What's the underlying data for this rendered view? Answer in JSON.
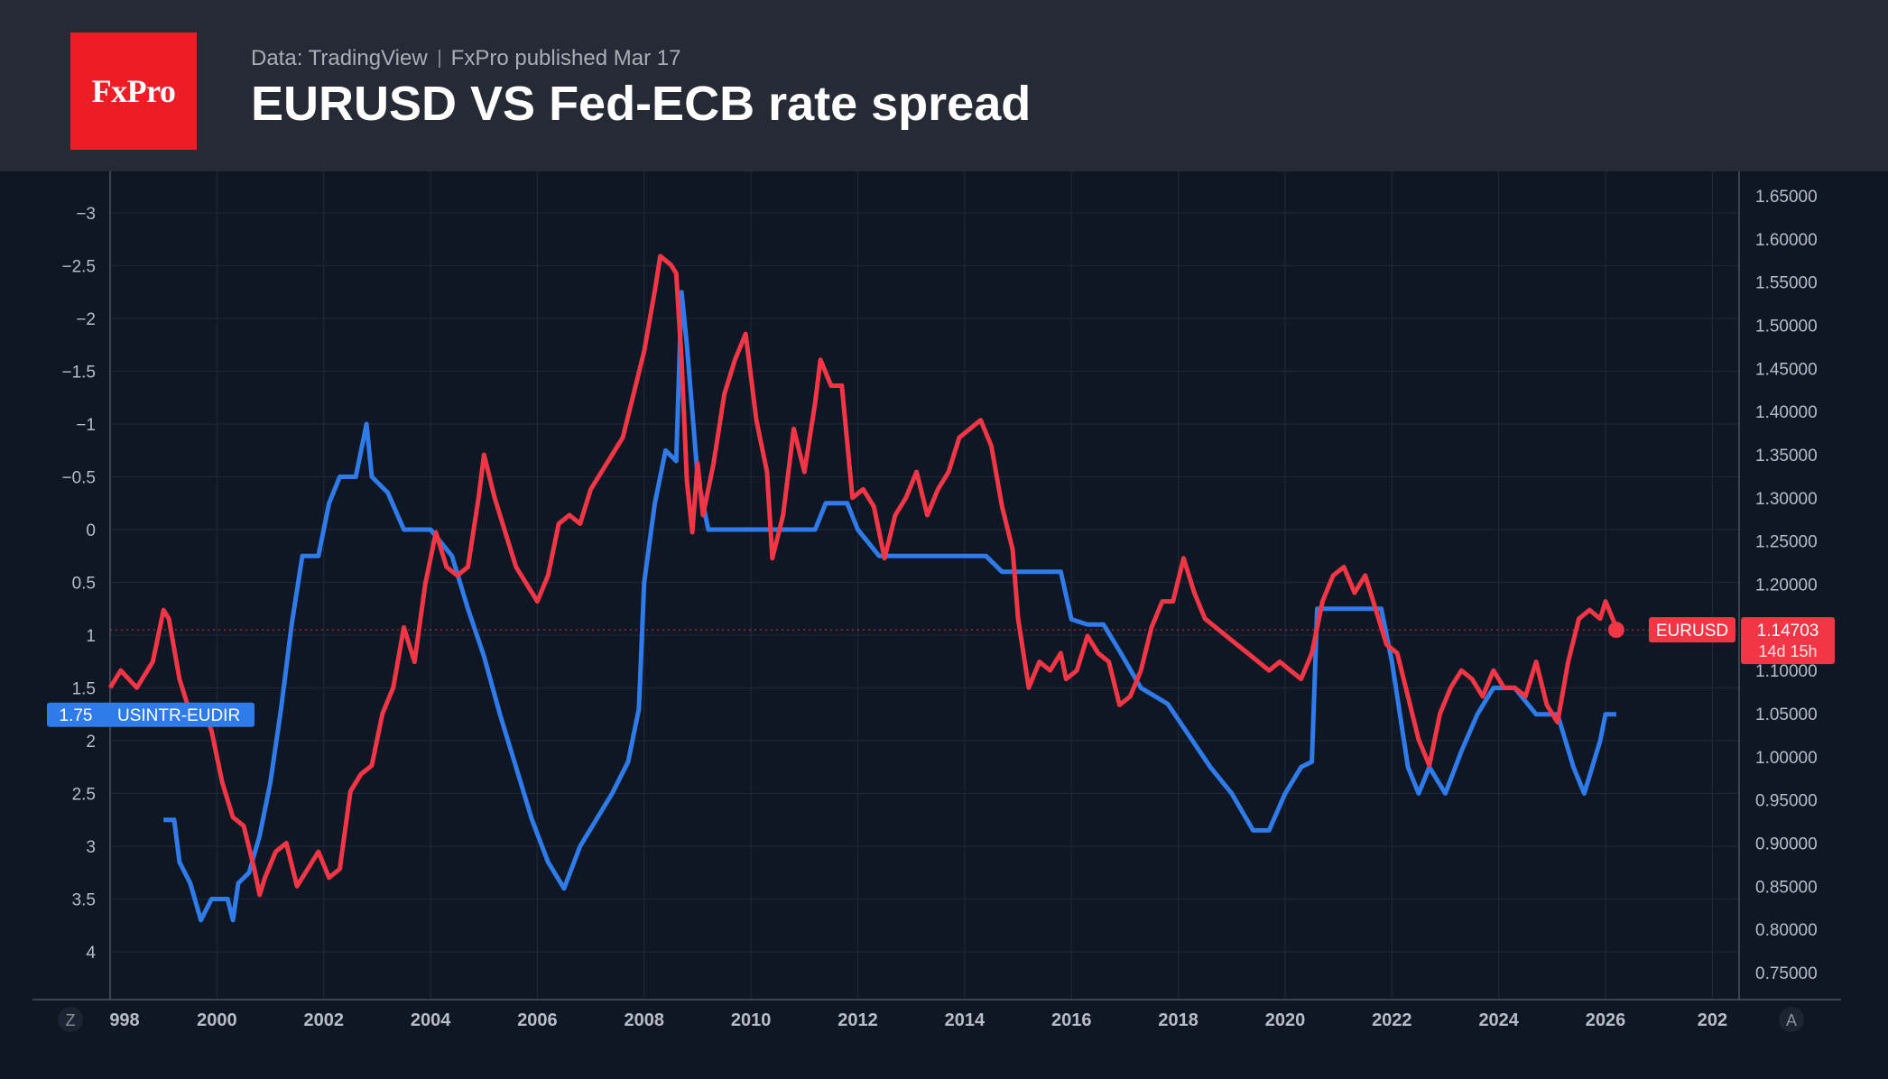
{
  "header": {
    "logo_text": "FxPro",
    "source": "Data: TradingView",
    "published": "FxPro published Mar 17",
    "title": "EURUSD VS Fed-ECB rate spread"
  },
  "corner_labels": {
    "left": "Z",
    "right": "A"
  },
  "colors": {
    "eurusd": "#f23645",
    "spread": "#2f7bea",
    "background": "#0f1725",
    "header": "#262a35",
    "logo": "#ee1c25"
  },
  "chart_data": {
    "type": "line",
    "title": "EURUSD VS Fed-ECB rate spread",
    "x_ticks": [
      "998",
      "2000",
      "2002",
      "2004",
      "2006",
      "2008",
      "2010",
      "2012",
      "2014",
      "2016",
      "2018",
      "2020",
      "2022",
      "2024",
      "2026",
      "202"
    ],
    "xlim": [
      1998,
      2028.5
    ],
    "left_axis": {
      "inverted": true,
      "ylim": [
        -3.3,
        4.3
      ],
      "ticks": [
        "−3",
        "−2.5",
        "−2",
        "−1.5",
        "−1",
        "−0.5",
        "0",
        "0.5",
        "1",
        "1.5",
        "2",
        "2.5",
        "3",
        "3.5",
        "4"
      ],
      "tick_values": [
        -3,
        -2.5,
        -2,
        -1.5,
        -1,
        -0.5,
        0,
        0.5,
        1,
        1.5,
        2,
        2.5,
        3,
        3.5,
        4
      ]
    },
    "right_axis": {
      "ylim": [
        0.725,
        1.675
      ],
      "ticks": [
        "1.65000",
        "1.60000",
        "1.55000",
        "1.50000",
        "1.45000",
        "1.40000",
        "1.35000",
        "1.30000",
        "1.25000",
        "1.20000",
        "1.15000",
        "1.10000",
        "1.05000",
        "1.00000",
        "0.95000",
        "0.90000",
        "0.85000",
        "0.80000",
        "0.75000"
      ],
      "tick_values": [
        1.65,
        1.6,
        1.55,
        1.5,
        1.45,
        1.4,
        1.35,
        1.3,
        1.25,
        1.2,
        1.15,
        1.1,
        1.05,
        1.0,
        0.95,
        0.9,
        0.85,
        0.8,
        0.75
      ]
    },
    "grid": true,
    "series": [
      {
        "name": "EURUSD",
        "axis": "right",
        "last_label": "1.14703",
        "countdown": "14d 15h",
        "points": [
          [
            1998.0,
            1.08
          ],
          [
            1998.2,
            1.1
          ],
          [
            1998.5,
            1.08
          ],
          [
            1998.8,
            1.11
          ],
          [
            1999.0,
            1.17
          ],
          [
            1999.1,
            1.16
          ],
          [
            1999.3,
            1.09
          ],
          [
            1999.5,
            1.05
          ],
          [
            1999.7,
            1.06
          ],
          [
            1999.9,
            1.03
          ],
          [
            2000.1,
            0.97
          ],
          [
            2000.3,
            0.93
          ],
          [
            2000.5,
            0.92
          ],
          [
            2000.7,
            0.87
          ],
          [
            2000.8,
            0.84
          ],
          [
            2000.9,
            0.86
          ],
          [
            2001.1,
            0.89
          ],
          [
            2001.3,
            0.9
          ],
          [
            2001.5,
            0.85
          ],
          [
            2001.7,
            0.87
          ],
          [
            2001.9,
            0.89
          ],
          [
            2002.1,
            0.86
          ],
          [
            2002.3,
            0.87
          ],
          [
            2002.5,
            0.96
          ],
          [
            2002.7,
            0.98
          ],
          [
            2002.9,
            0.99
          ],
          [
            2003.1,
            1.05
          ],
          [
            2003.3,
            1.08
          ],
          [
            2003.5,
            1.15
          ],
          [
            2003.7,
            1.11
          ],
          [
            2003.9,
            1.2
          ],
          [
            2004.1,
            1.26
          ],
          [
            2004.3,
            1.22
          ],
          [
            2004.5,
            1.21
          ],
          [
            2004.7,
            1.22
          ],
          [
            2004.9,
            1.3
          ],
          [
            2005.0,
            1.35
          ],
          [
            2005.2,
            1.3
          ],
          [
            2005.4,
            1.26
          ],
          [
            2005.6,
            1.22
          ],
          [
            2005.8,
            1.2
          ],
          [
            2006.0,
            1.18
          ],
          [
            2006.2,
            1.21
          ],
          [
            2006.4,
            1.27
          ],
          [
            2006.6,
            1.28
          ],
          [
            2006.8,
            1.27
          ],
          [
            2007.0,
            1.31
          ],
          [
            2007.2,
            1.33
          ],
          [
            2007.4,
            1.35
          ],
          [
            2007.6,
            1.37
          ],
          [
            2007.8,
            1.42
          ],
          [
            2008.0,
            1.47
          ],
          [
            2008.2,
            1.54
          ],
          [
            2008.3,
            1.58
          ],
          [
            2008.5,
            1.57
          ],
          [
            2008.6,
            1.56
          ],
          [
            2008.7,
            1.46
          ],
          [
            2008.8,
            1.32
          ],
          [
            2008.9,
            1.26
          ],
          [
            2009.0,
            1.34
          ],
          [
            2009.1,
            1.28
          ],
          [
            2009.3,
            1.34
          ],
          [
            2009.5,
            1.42
          ],
          [
            2009.7,
            1.46
          ],
          [
            2009.9,
            1.49
          ],
          [
            2010.1,
            1.39
          ],
          [
            2010.3,
            1.33
          ],
          [
            2010.4,
            1.23
          ],
          [
            2010.6,
            1.28
          ],
          [
            2010.8,
            1.38
          ],
          [
            2011.0,
            1.33
          ],
          [
            2011.2,
            1.41
          ],
          [
            2011.3,
            1.46
          ],
          [
            2011.5,
            1.43
          ],
          [
            2011.7,
            1.43
          ],
          [
            2011.9,
            1.3
          ],
          [
            2012.1,
            1.31
          ],
          [
            2012.3,
            1.29
          ],
          [
            2012.5,
            1.23
          ],
          [
            2012.7,
            1.28
          ],
          [
            2012.9,
            1.3
          ],
          [
            2013.1,
            1.33
          ],
          [
            2013.3,
            1.28
          ],
          [
            2013.5,
            1.31
          ],
          [
            2013.7,
            1.33
          ],
          [
            2013.9,
            1.37
          ],
          [
            2014.1,
            1.38
          ],
          [
            2014.3,
            1.39
          ],
          [
            2014.5,
            1.36
          ],
          [
            2014.7,
            1.29
          ],
          [
            2014.9,
            1.24
          ],
          [
            2015.0,
            1.16
          ],
          [
            2015.2,
            1.08
          ],
          [
            2015.4,
            1.11
          ],
          [
            2015.6,
            1.1
          ],
          [
            2015.8,
            1.12
          ],
          [
            2015.9,
            1.09
          ],
          [
            2016.1,
            1.1
          ],
          [
            2016.3,
            1.14
          ],
          [
            2016.5,
            1.12
          ],
          [
            2016.7,
            1.11
          ],
          [
            2016.9,
            1.06
          ],
          [
            2017.1,
            1.07
          ],
          [
            2017.3,
            1.1
          ],
          [
            2017.5,
            1.15
          ],
          [
            2017.7,
            1.18
          ],
          [
            2017.9,
            1.18
          ],
          [
            2018.1,
            1.23
          ],
          [
            2018.3,
            1.19
          ],
          [
            2018.5,
            1.16
          ],
          [
            2018.7,
            1.15
          ],
          [
            2018.9,
            1.14
          ],
          [
            2019.1,
            1.13
          ],
          [
            2019.3,
            1.12
          ],
          [
            2019.5,
            1.11
          ],
          [
            2019.7,
            1.1
          ],
          [
            2019.9,
            1.11
          ],
          [
            2020.1,
            1.1
          ],
          [
            2020.3,
            1.09
          ],
          [
            2020.5,
            1.12
          ],
          [
            2020.7,
            1.18
          ],
          [
            2020.9,
            1.21
          ],
          [
            2021.1,
            1.22
          ],
          [
            2021.3,
            1.19
          ],
          [
            2021.5,
            1.21
          ],
          [
            2021.7,
            1.17
          ],
          [
            2021.9,
            1.13
          ],
          [
            2022.1,
            1.12
          ],
          [
            2022.3,
            1.07
          ],
          [
            2022.5,
            1.02
          ],
          [
            2022.7,
            0.99
          ],
          [
            2022.9,
            1.05
          ],
          [
            2023.1,
            1.08
          ],
          [
            2023.3,
            1.1
          ],
          [
            2023.5,
            1.09
          ],
          [
            2023.7,
            1.07
          ],
          [
            2023.9,
            1.1
          ],
          [
            2024.1,
            1.08
          ],
          [
            2024.3,
            1.08
          ],
          [
            2024.5,
            1.07
          ],
          [
            2024.7,
            1.11
          ],
          [
            2024.9,
            1.06
          ],
          [
            2025.1,
            1.04
          ],
          [
            2025.3,
            1.11
          ],
          [
            2025.5,
            1.16
          ],
          [
            2025.7,
            1.17
          ],
          [
            2025.9,
            1.16
          ],
          [
            2026.0,
            1.18
          ],
          [
            2026.2,
            1.15
          ]
        ]
      },
      {
        "name": "USINTR-EUDIR",
        "axis": "left",
        "last_label": "1.75",
        "points": [
          [
            1999.0,
            2.75
          ],
          [
            1999.2,
            2.75
          ],
          [
            1999.3,
            3.15
          ],
          [
            1999.5,
            3.35
          ],
          [
            1999.7,
            3.7
          ],
          [
            1999.9,
            3.5
          ],
          [
            2000.2,
            3.5
          ],
          [
            2000.3,
            3.7
          ],
          [
            2000.4,
            3.35
          ],
          [
            2000.6,
            3.25
          ],
          [
            2000.8,
            2.9
          ],
          [
            2001.0,
            2.4
          ],
          [
            2001.2,
            1.7
          ],
          [
            2001.4,
            0.9
          ],
          [
            2001.6,
            0.25
          ],
          [
            2001.9,
            0.25
          ],
          [
            2002.1,
            -0.25
          ],
          [
            2002.3,
            -0.5
          ],
          [
            2002.6,
            -0.5
          ],
          [
            2002.8,
            -1.0
          ],
          [
            2002.9,
            -0.5
          ],
          [
            2003.2,
            -0.35
          ],
          [
            2003.5,
            0.0
          ],
          [
            2004.0,
            0.0
          ],
          [
            2004.4,
            0.25
          ],
          [
            2004.7,
            0.75
          ],
          [
            2005.0,
            1.2
          ],
          [
            2005.3,
            1.75
          ],
          [
            2005.6,
            2.25
          ],
          [
            2005.9,
            2.75
          ],
          [
            2006.2,
            3.15
          ],
          [
            2006.5,
            3.4
          ],
          [
            2006.8,
            3.0
          ],
          [
            2007.1,
            2.75
          ],
          [
            2007.4,
            2.5
          ],
          [
            2007.7,
            2.2
          ],
          [
            2007.9,
            1.7
          ],
          [
            2008.0,
            0.5
          ],
          [
            2008.2,
            -0.25
          ],
          [
            2008.4,
            -0.75
          ],
          [
            2008.6,
            -0.65
          ],
          [
            2008.7,
            -2.25
          ],
          [
            2008.8,
            -1.75
          ],
          [
            2009.0,
            -0.5
          ],
          [
            2009.2,
            0.0
          ],
          [
            2010.0,
            0.0
          ],
          [
            2011.2,
            0.0
          ],
          [
            2011.4,
            -0.25
          ],
          [
            2011.8,
            -0.25
          ],
          [
            2012.0,
            0.0
          ],
          [
            2012.4,
            0.25
          ],
          [
            2013.0,
            0.25
          ],
          [
            2014.4,
            0.25
          ],
          [
            2014.7,
            0.4
          ],
          [
            2015.8,
            0.4
          ],
          [
            2016.0,
            0.85
          ],
          [
            2016.3,
            0.9
          ],
          [
            2016.6,
            0.9
          ],
          [
            2016.9,
            1.15
          ],
          [
            2017.3,
            1.5
          ],
          [
            2017.8,
            1.65
          ],
          [
            2018.2,
            1.95
          ],
          [
            2018.6,
            2.25
          ],
          [
            2019.0,
            2.5
          ],
          [
            2019.4,
            2.85
          ],
          [
            2019.7,
            2.85
          ],
          [
            2020.0,
            2.5
          ],
          [
            2020.3,
            2.25
          ],
          [
            2020.5,
            2.2
          ],
          [
            2020.6,
            0.75
          ],
          [
            2021.8,
            0.75
          ],
          [
            2022.0,
            1.25
          ],
          [
            2022.3,
            2.25
          ],
          [
            2022.5,
            2.5
          ],
          [
            2022.7,
            2.25
          ],
          [
            2023.0,
            2.5
          ],
          [
            2023.3,
            2.1
          ],
          [
            2023.6,
            1.75
          ],
          [
            2023.9,
            1.5
          ],
          [
            2024.3,
            1.5
          ],
          [
            2024.7,
            1.75
          ],
          [
            2025.1,
            1.75
          ],
          [
            2025.4,
            2.25
          ],
          [
            2025.6,
            2.5
          ],
          [
            2025.9,
            2.0
          ],
          [
            2026.0,
            1.75
          ],
          [
            2026.2,
            1.75
          ]
        ]
      }
    ]
  }
}
